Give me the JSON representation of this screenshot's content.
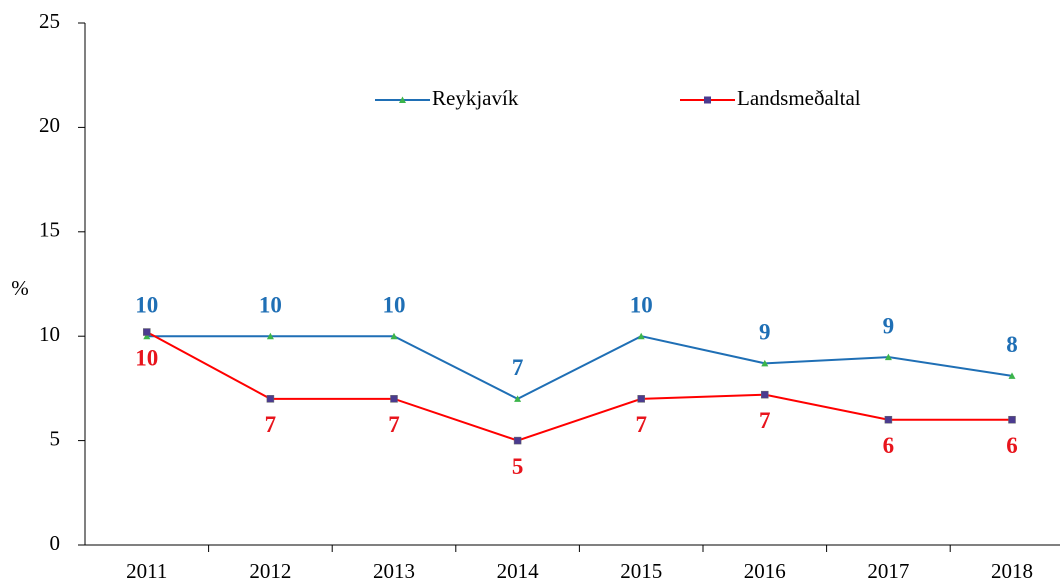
{
  "chart_data": {
    "type": "line",
    "y_label": "%",
    "categories": [
      "2011",
      "2012",
      "2013",
      "2014",
      "2015",
      "2016",
      "2017",
      "2018"
    ],
    "series": [
      {
        "name": "Reykjavík",
        "color": "#1f6fb5",
        "marker_color": "#3cb44b",
        "label_color": "#1f6fb5",
        "values": [
          10,
          10,
          10,
          7,
          10,
          8.7,
          9,
          8.1
        ],
        "value_labels": [
          "10",
          "10",
          "10",
          "7",
          "10",
          "9",
          "9",
          "8"
        ]
      },
      {
        "name": "Landsmeðaltal",
        "color": "#ff0000",
        "marker_color": "#4b3b8f",
        "label_color": "#e8141c",
        "values": [
          10.2,
          7,
          7,
          5,
          7,
          7.2,
          6,
          6
        ],
        "value_labels": [
          "10",
          "7",
          "7",
          "5",
          "7",
          "7",
          "6",
          "6"
        ]
      }
    ],
    "ylim": [
      0,
      25
    ],
    "yticks": [
      0,
      5,
      10,
      15,
      20,
      25
    ],
    "grid": false,
    "legend": "top"
  }
}
